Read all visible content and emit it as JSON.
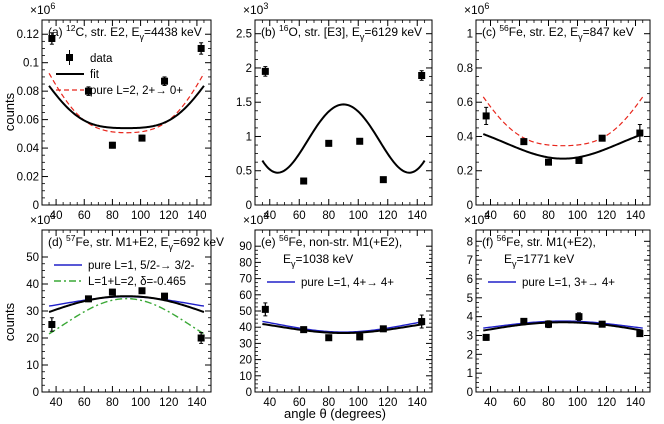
{
  "figure": {
    "ylabel": "counts",
    "xlabel": "angle θ (degrees)"
  },
  "chart_data": [
    {
      "type": "scatter",
      "title": "(a) 12C, str. E2, Eγ=4438 keV",
      "title_parts": {
        "pre": "(a) ",
        "sup": "12",
        "mid": "C, str. E2, E",
        "sub": "γ",
        "post": "=4438 keV"
      },
      "exp_label": "×10",
      "exp_power": "6",
      "xlim": [
        30,
        150
      ],
      "ylim": [
        0,
        0.13
      ],
      "xticks": [
        40,
        60,
        80,
        100,
        120,
        140
      ],
      "yticks": [
        0,
        0.02,
        0.04,
        0.06,
        0.08,
        0.1,
        0.12
      ],
      "ytick_labels": [
        "0",
        "0.02",
        "0.04",
        "0.06",
        "0.08",
        "0.1",
        "0.12"
      ],
      "data": {
        "x": [
          37,
          63,
          80,
          101,
          117,
          143
        ],
        "y": [
          0.117,
          0.08,
          0.042,
          0.047,
          0.087,
          0.11
        ],
        "err": [
          0.004,
          0.003,
          0.002,
          0.002,
          0.003,
          0.004
        ]
      },
      "fit": {
        "a0": 0.0675,
        "a2": 0.0363,
        "a4": 0.0124
      },
      "pure": {
        "a0": 0.07,
        "a2": 0.0496,
        "a4": 0.0149
      },
      "legend": [
        {
          "label": "data",
          "style": "marker"
        },
        {
          "label": "fit",
          "style": "solid-black"
        },
        {
          "label": "pure L=2, 2+→ 0+",
          "style": "dashed-red"
        }
      ]
    },
    {
      "type": "scatter",
      "title": "(b) 16O, str. [E3], Eγ=6129 keV",
      "title_parts": {
        "pre": "(b) ",
        "sup": "16",
        "mid": "O, str. [E3], E",
        "sub": "γ",
        "post": "=6129 keV"
      },
      "exp_label": "×10",
      "exp_power": "3",
      "xlim": [
        30,
        150
      ],
      "ylim": [
        0,
        2.7
      ],
      "xticks": [
        40,
        60,
        80,
        100,
        120,
        140
      ],
      "yticks": [
        0,
        0.5,
        1,
        1.5,
        2,
        2.5
      ],
      "ytick_labels": [
        "0",
        "0.5",
        "1",
        "1.5",
        "2",
        "2.5"
      ],
      "data": {
        "x": [
          37,
          63,
          80,
          101,
          117,
          143
        ],
        "y": [
          1.95,
          0.35,
          0.9,
          0.93,
          0.37,
          1.89
        ],
        "err": [
          0.07,
          0.03,
          0.04,
          0.04,
          0.03,
          0.07
        ]
      },
      "fit": {
        "a0": 1.0,
        "a2": -0.1855,
        "a4": 1.13,
        "a6": 0.1557
      },
      "legend": []
    },
    {
      "type": "scatter",
      "title": "(c) 56Fe, str. E2, Eγ=847 keV",
      "title_parts": {
        "pre": "(c) ",
        "sup": "56",
        "mid": "Fe, str. E2, E",
        "sub": "γ",
        "post": "=847 keV"
      },
      "exp_label": "×10",
      "exp_power": "6",
      "xlim": [
        30,
        150
      ],
      "ylim": [
        0,
        1.08
      ],
      "xticks": [
        40,
        60,
        80,
        100,
        120,
        140
      ],
      "yticks": [
        0,
        0.2,
        0.4,
        0.6,
        0.8,
        1
      ],
      "ytick_labels": [
        "0",
        "0.2",
        "0.4",
        "0.6",
        "0.8",
        "1"
      ],
      "data": {
        "x": [
          37,
          63,
          80,
          101,
          117,
          143
        ],
        "y": [
          0.52,
          0.37,
          0.25,
          0.26,
          0.39,
          0.42
        ],
        "err": [
          0.05,
          0.015,
          0.012,
          0.012,
          0.015,
          0.05
        ]
      },
      "fit": {
        "a0": 0.3427,
        "a2": 0.1376,
        "a4": -0.0091
      },
      "pure": {
        "a0": 0.4773,
        "a2": 0.3382,
        "a4": 0.1011
      },
      "legend": []
    },
    {
      "type": "scatter",
      "title": "(d) 57Fe, str. M1+E2, Eγ=692 keV",
      "title_parts": {
        "pre": "(d) ",
        "sup": "57",
        "mid": "Fe, str. M1+E2, E",
        "sub": "γ",
        "post": "=692 keV"
      },
      "exp_label": "×10",
      "exp_power": "3",
      "xlim": [
        30,
        150
      ],
      "ylim": [
        0,
        60
      ],
      "xticks": [
        40,
        60,
        80,
        100,
        120,
        140
      ],
      "yticks": [
        0,
        10,
        20,
        30,
        40,
        50
      ],
      "ytick_labels": [
        "0",
        "10",
        "20",
        "30",
        "40",
        "50"
      ],
      "data": {
        "x": [
          37,
          63,
          80,
          101,
          117,
          143
        ],
        "y": [
          25,
          34.5,
          37,
          37.5,
          35.5,
          20
        ],
        "err": [
          2.5,
          1.0,
          0.8,
          0.8,
          1.0,
          2.0
        ]
      },
      "fit": {
        "a0": 32.65,
        "a2": -6.22,
        "a4": -0.75
      },
      "pure": {
        "a0": 33.56,
        "a2": -3.44,
        "a4": 0
      },
      "mixed": {
        "a0": 28.1,
        "a2": -12.97,
        "a4": 0
      },
      "legend": [
        {
          "label": "pure L=1, 5/2-→ 3/2-",
          "style": "solid-blue"
        },
        {
          "label": "L=1+L=2, δ=-0.465",
          "style": "dashdot-green"
        }
      ]
    },
    {
      "type": "scatter",
      "title": "(e) 56Fe, non-str. M1(+E2), Eγ=1038 keV",
      "title_parts": {
        "pre": "(e) ",
        "sup": "56",
        "mid": "Fe, non-str. M1(+E2),",
        "sub": "",
        "post": ""
      },
      "title_line2": {
        "pre": "E",
        "sub": "γ",
        "post": "=1038 keV"
      },
      "exp_label": "×10",
      "exp_power": "3",
      "xlim": [
        30,
        150
      ],
      "ylim": [
        0,
        100
      ],
      "xticks": [
        40,
        60,
        80,
        100,
        120,
        140
      ],
      "yticks": [
        0,
        10,
        20,
        30,
        40,
        50,
        60,
        70,
        80,
        90
      ],
      "ytick_labels": [
        "0",
        "10",
        "20",
        "30",
        "40",
        "50",
        "60",
        "70",
        "80",
        "90"
      ],
      "data": {
        "x": [
          37,
          63,
          80,
          101,
          117,
          143
        ],
        "y": [
          51,
          38.5,
          33.5,
          34,
          39,
          43.5
        ],
        "err": [
          4,
          1.2,
          0.8,
          0.8,
          1.2,
          4
        ]
      },
      "fit": {
        "a0": 39.18,
        "a2": 5.55,
        "a4": 0.0
      },
      "pure": {
        "a0": 40.27,
        "a2": 6.54,
        "a4": 0
      },
      "legend": [
        {
          "label": "pure L=1, 4+→ 4+",
          "style": "solid-blue"
        }
      ]
    },
    {
      "type": "scatter",
      "title": "(f) 56Fe, str. M1(+E2), Eγ=1771 keV",
      "title_parts": {
        "pre": "(f) ",
        "sup": "56",
        "mid": "Fe, str. M1(+E2),",
        "sub": "",
        "post": ""
      },
      "title_line2": {
        "pre": "E",
        "sub": "γ",
        "post": "=1771 keV"
      },
      "exp_label": "×10",
      "exp_power": "3",
      "xlim": [
        30,
        150
      ],
      "ylim": [
        0,
        8.6
      ],
      "xticks": [
        40,
        60,
        80,
        100,
        120,
        140
      ],
      "yticks": [
        0,
        1,
        2,
        3,
        4,
        5,
        6,
        7,
        8
      ],
      "ytick_labels": [
        "0",
        "1",
        "2",
        "3",
        "4",
        "5",
        "6",
        "7",
        "8"
      ],
      "data": {
        "x": [
          37,
          63,
          80,
          101,
          117,
          143
        ],
        "y": [
          2.9,
          3.75,
          3.6,
          4.0,
          3.6,
          3.1
        ],
        "err": [
          0.15,
          0.15,
          0.18,
          0.2,
          0.12,
          0.15
        ]
      },
      "fit": {
        "a0": 3.488,
        "a2": -0.459,
        "a4": -0.043
      },
      "pure": {
        "a0": 3.582,
        "a2": -0.372,
        "a4": 0
      },
      "legend": [
        {
          "label": "pure L=1, 3+→ 4+",
          "style": "solid-blue"
        }
      ]
    }
  ]
}
